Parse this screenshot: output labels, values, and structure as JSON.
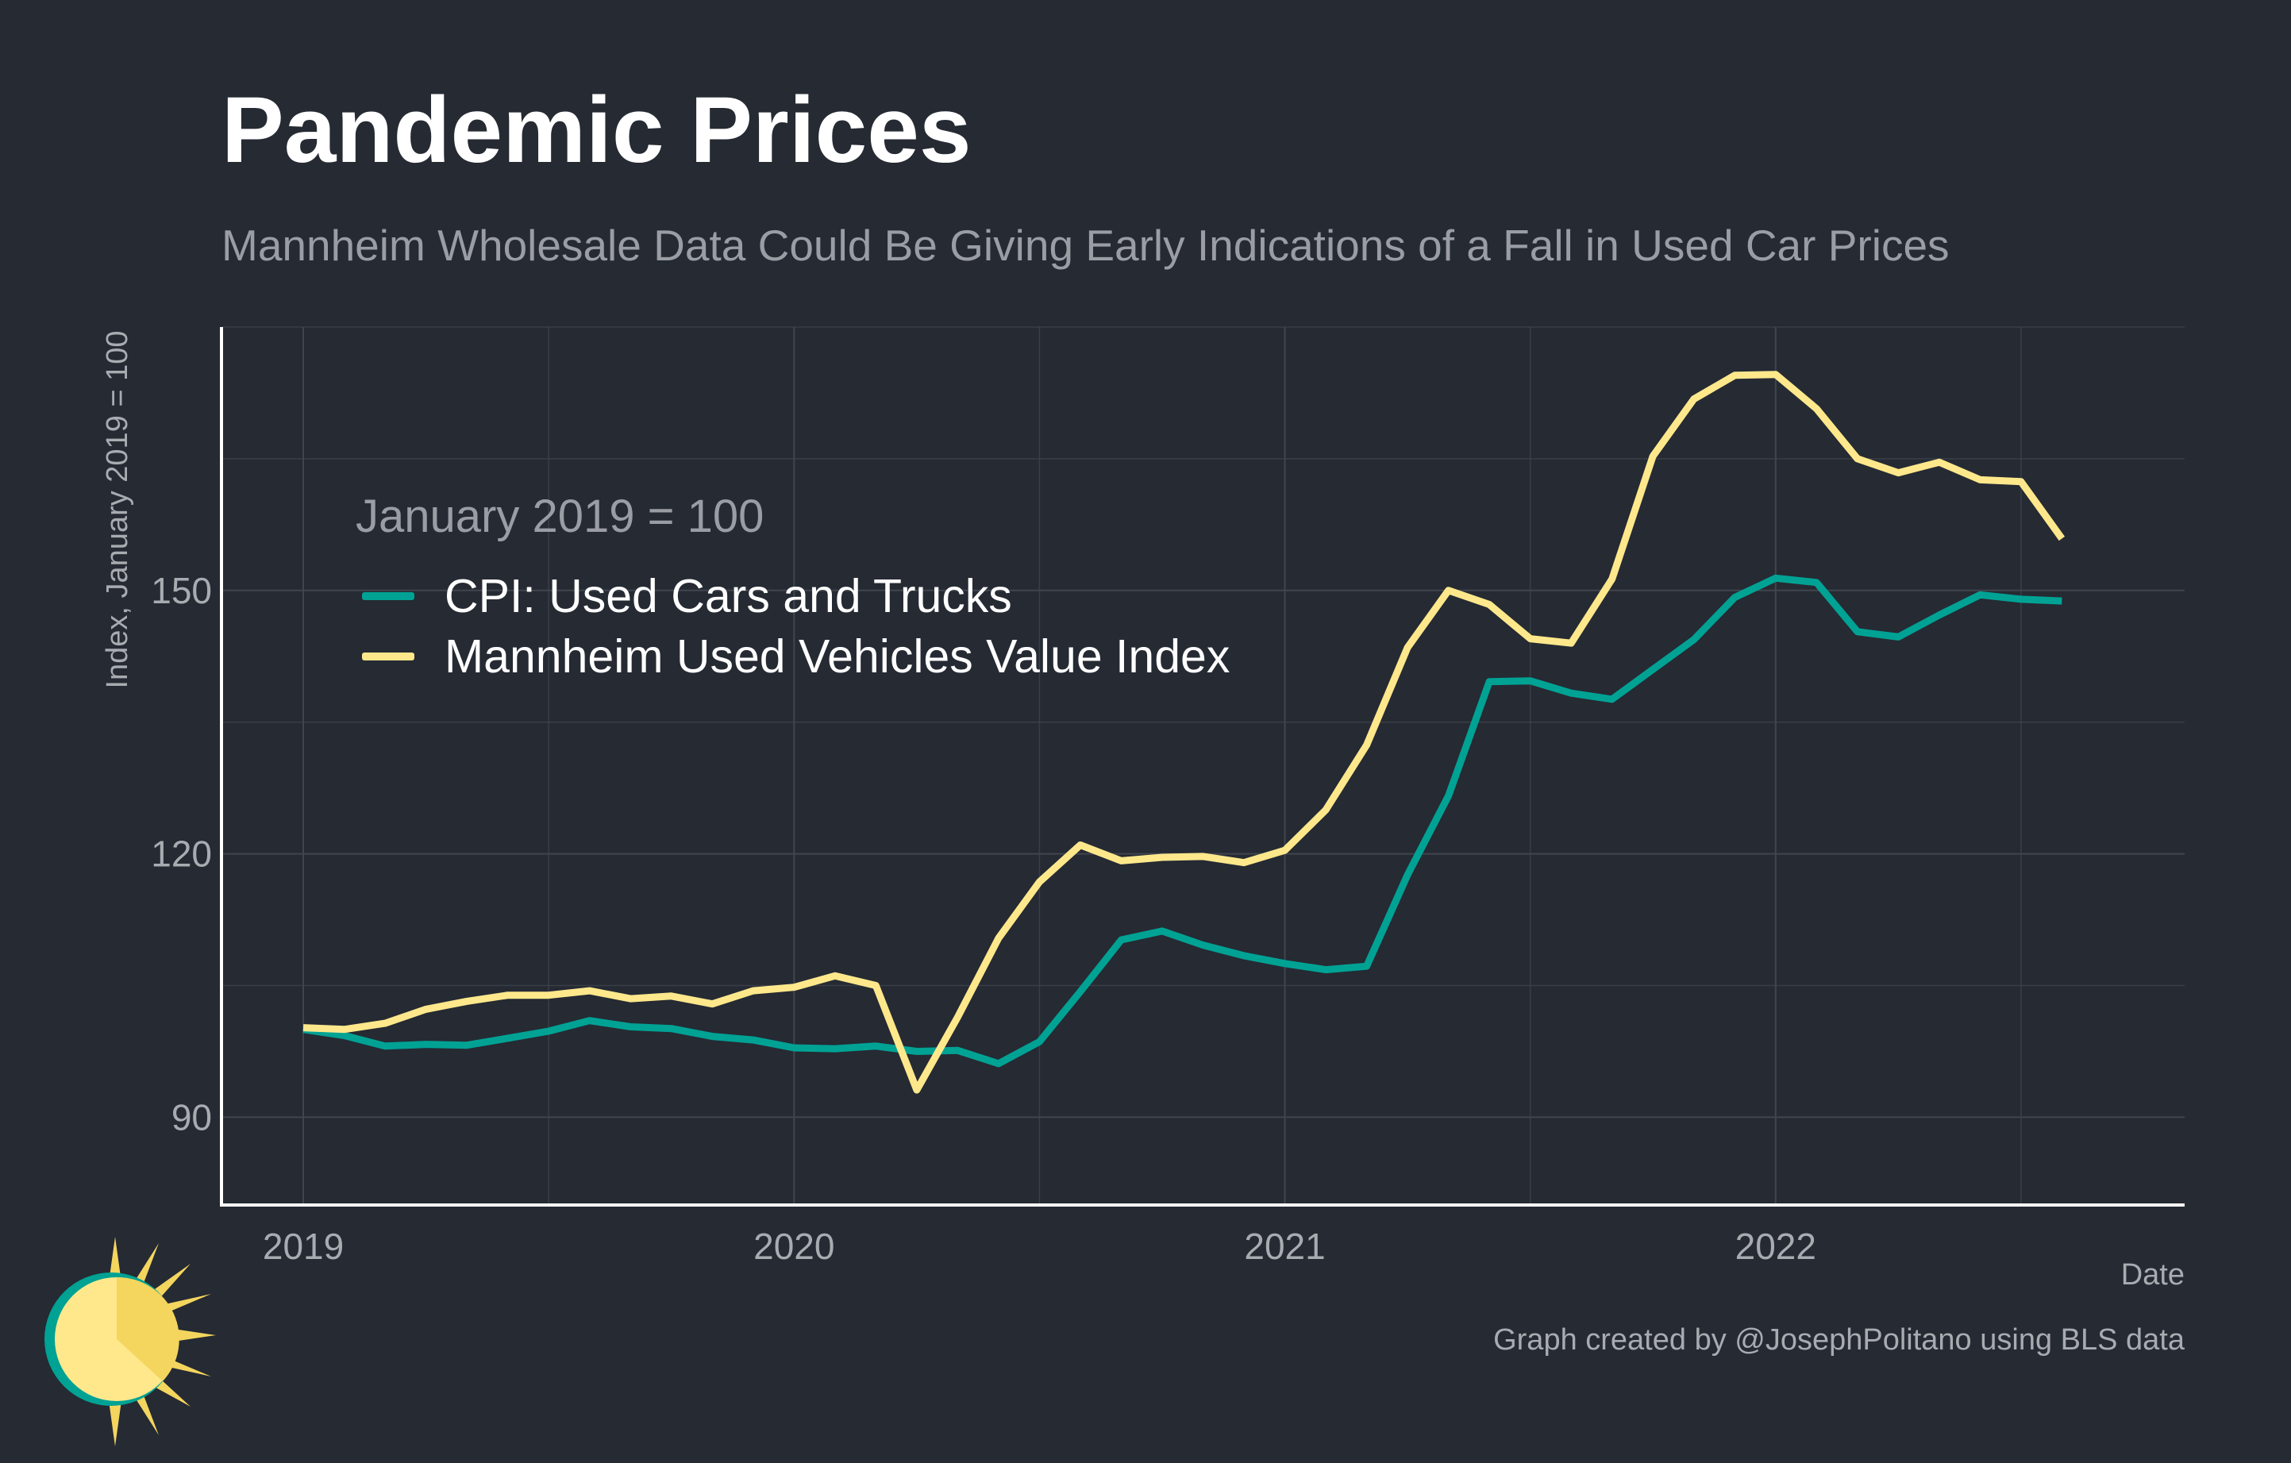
{
  "title": "Pandemic Prices",
  "subtitle": "Mannheim Wholesale Data Could Be Giving Early Indications of a Fall in Used Car Prices",
  "caption": "Graph created by @JosephPolitano using BLS data",
  "colors": {
    "background": "#252a33",
    "grid": "#40454e",
    "axis": "#ffffff",
    "cpi": "#00a294",
    "mannheim": "#fee88b"
  },
  "chart_data": {
    "type": "line",
    "title": "Pandemic Prices",
    "xlabel": "Date",
    "ylabel": "Index, January 2019 = 100",
    "legend_title": "January 2019 = 100",
    "legend_position": "top-left",
    "grid": true,
    "xlim": [
      "2018-11",
      "2022-11"
    ],
    "ylim": [
      80,
      180
    ],
    "x_ticks": [
      "2019",
      "2020",
      "2021",
      "2022"
    ],
    "y_ticks": [
      90,
      120,
      150
    ],
    "x": [
      "2019-01",
      "2019-02",
      "2019-03",
      "2019-04",
      "2019-05",
      "2019-06",
      "2019-07",
      "2019-08",
      "2019-09",
      "2019-10",
      "2019-11",
      "2019-12",
      "2020-01",
      "2020-02",
      "2020-03",
      "2020-04",
      "2020-05",
      "2020-06",
      "2020-07",
      "2020-08",
      "2020-09",
      "2020-10",
      "2020-11",
      "2020-12",
      "2021-01",
      "2021-02",
      "2021-03",
      "2021-04",
      "2021-05",
      "2021-06",
      "2021-07",
      "2021-08",
      "2021-09",
      "2021-10",
      "2021-11",
      "2021-12",
      "2022-01",
      "2022-02",
      "2022-03",
      "2022-04",
      "2022-05",
      "2022-06",
      "2022-07",
      "2022-08"
    ],
    "series": [
      {
        "name": "CPI: Used Cars and Trucks",
        "color": "#00a294",
        "values": [
          100,
          99.3,
          98.1,
          98.3,
          98.2,
          99.0,
          99.8,
          101.0,
          100.3,
          100.1,
          99.2,
          98.8,
          97.9,
          97.8,
          98.1,
          97.5,
          97.6,
          96.1,
          98.6,
          104.3,
          110.2,
          111.2,
          109.6,
          108.4,
          107.5,
          106.8,
          107.2,
          117.6,
          126.6,
          139.6,
          139.7,
          138.3,
          137.6,
          141.0,
          144.4,
          149.2,
          151.4,
          150.9,
          145.3,
          144.7,
          147.2,
          149.5,
          149.0,
          148.8
        ]
      },
      {
        "name": "Mannheim Used Vehicles Value Index",
        "color": "#fee88b",
        "values": [
          100.2,
          100.0,
          100.7,
          102.3,
          103.2,
          103.9,
          103.9,
          104.4,
          103.5,
          103.8,
          102.9,
          104.4,
          104.8,
          106.1,
          105.0,
          93.1,
          101.4,
          110.4,
          116.8,
          121.0,
          119.2,
          119.6,
          119.7,
          119.0,
          120.4,
          125.0,
          132.4,
          143.5,
          150.0,
          148.4,
          144.5,
          144.0,
          151.3,
          165.3,
          171.8,
          174.5,
          174.6,
          170.7,
          165.0,
          163.4,
          164.6,
          162.6,
          162.4,
          155.9
        ]
      }
    ]
  }
}
